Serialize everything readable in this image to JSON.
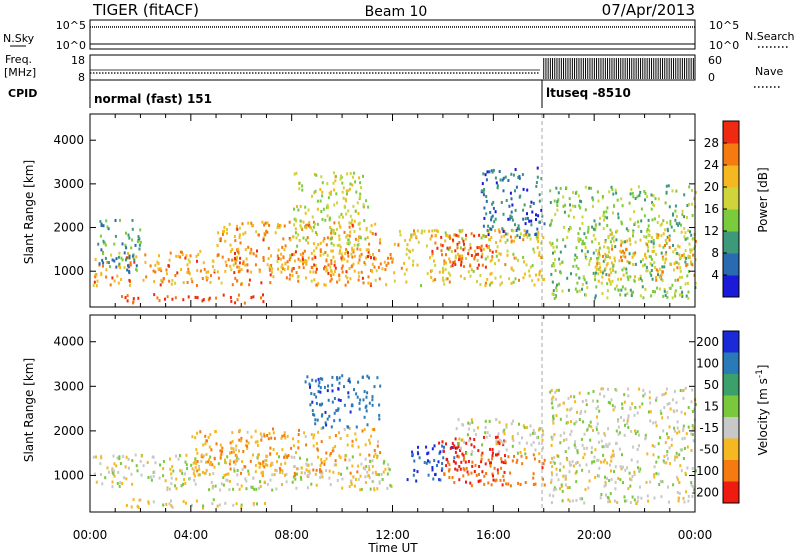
{
  "header": {
    "left": "TIGER (fitACF)",
    "center": "Beam 10",
    "right": "07/Apr/2013"
  },
  "top_panels": {
    "nsky": {
      "label": "N.Sky",
      "ticks": [
        "10^5",
        "10^0"
      ]
    },
    "nsearch": {
      "label": "N.Search",
      "ticks": [
        "10^5",
        "10^0"
      ]
    },
    "freq": {
      "label_line1": "Freq.",
      "label_line2": "[MHz]",
      "ticks": [
        "18",
        "8"
      ]
    },
    "nave": {
      "label": "Nave",
      "ticks": [
        "60",
        "0"
      ]
    },
    "cpid": {
      "label": "CPID",
      "programs": [
        {
          "name": "normal (fast) 151",
          "start_hour": 0
        },
        {
          "name": "ltuseq -8510",
          "start_hour": 18
        }
      ]
    }
  },
  "chart_data": [
    {
      "type": "heatmap",
      "parameter": "Power",
      "ylabel": "Slant Range [km]",
      "xlabel": "Time UT",
      "x_ticks": [
        "00:00",
        "04:00",
        "08:00",
        "12:00",
        "16:00",
        "20:00",
        "00:00"
      ],
      "xlim_hours": [
        0,
        24
      ],
      "ylim_km": [
        180,
        4600
      ],
      "y_ticks": [
        1000,
        2000,
        3000,
        4000
      ],
      "colorbar": {
        "label": "Power [dB]",
        "range": [
          0,
          32
        ],
        "ticks": [
          4,
          8,
          12,
          16,
          20,
          24,
          28
        ],
        "colors": [
          "#1a1ad8",
          "#2a6ab0",
          "#3c9a7a",
          "#7acc3c",
          "#cfd43a",
          "#f5b820",
          "#f57a10",
          "#ef2a10"
        ]
      },
      "regions": [
        {
          "t0": 0.1,
          "t1": 12,
          "r0": 700,
          "r1": 1500,
          "value": 24
        },
        {
          "t0": 1,
          "t1": 7,
          "r0": 300,
          "r1": 500,
          "value": 30
        },
        {
          "t0": 5,
          "t1": 11.5,
          "r0": 1000,
          "r1": 2200,
          "value": 24
        },
        {
          "t0": 8,
          "t1": 11,
          "r0": 1600,
          "r1": 3300,
          "value": 17
        },
        {
          "t0": 12,
          "t1": 18,
          "r0": 700,
          "r1": 2000,
          "value": 20
        },
        {
          "t0": 13.5,
          "t1": 16,
          "r0": 1100,
          "r1": 1900,
          "value": 29
        },
        {
          "t0": 15.5,
          "t1": 18,
          "r0": 1800,
          "r1": 3400,
          "value": 7
        },
        {
          "t0": 0.2,
          "t1": 2,
          "r0": 1000,
          "r1": 2200,
          "value": 9
        },
        {
          "t0": 18.2,
          "t1": 24,
          "r0": 400,
          "r1": 3000,
          "value": 14
        },
        {
          "t0": 20,
          "t1": 24,
          "r0": 800,
          "r1": 2000,
          "value": 21
        }
      ]
    },
    {
      "type": "heatmap",
      "parameter": "Velocity",
      "ylabel": "Slant Range [km]",
      "xlabel": "Time UT",
      "x_ticks": [
        "00:00",
        "04:00",
        "08:00",
        "12:00",
        "16:00",
        "20:00",
        "00:00"
      ],
      "xlim_hours": [
        0,
        24
      ],
      "ylim_km": [
        180,
        4600
      ],
      "y_ticks": [
        1000,
        2000,
        3000,
        4000
      ],
      "colorbar": {
        "label": "Velocity [m s^-1]",
        "ticks": [
          "200",
          "100",
          "50",
          "15",
          "-15",
          "-50",
          "-100",
          "-200"
        ],
        "colors": [
          "#1a2ad8",
          "#2a7ab8",
          "#3ca06a",
          "#7ac83c",
          "#c8c8c8",
          "#f5b820",
          "#f57a10",
          "#ef1a10"
        ]
      },
      "regions": [
        {
          "t0": 0.1,
          "t1": 12,
          "r0": 700,
          "r1": 1500,
          "value": 0
        },
        {
          "t0": 1,
          "t1": 7,
          "r0": 300,
          "r1": 500,
          "value": -10
        },
        {
          "t0": 4,
          "t1": 11.5,
          "r0": 1000,
          "r1": 2100,
          "value": -40
        },
        {
          "t0": 8.5,
          "t1": 11.5,
          "r0": 2100,
          "r1": 3300,
          "value": 180
        },
        {
          "t0": 12.5,
          "t1": 14.5,
          "r0": 900,
          "r1": 1700,
          "value": 200
        },
        {
          "t0": 13.8,
          "t1": 16.5,
          "r0": 1100,
          "r1": 1900,
          "value": -210
        },
        {
          "t0": 14,
          "t1": 18,
          "r0": 800,
          "r1": 1500,
          "value": -80
        },
        {
          "t0": 14.5,
          "t1": 18,
          "r0": 1500,
          "r1": 2300,
          "value": 0
        },
        {
          "t0": 18.2,
          "t1": 24,
          "r0": 400,
          "r1": 3000,
          "value": 0
        }
      ]
    }
  ]
}
